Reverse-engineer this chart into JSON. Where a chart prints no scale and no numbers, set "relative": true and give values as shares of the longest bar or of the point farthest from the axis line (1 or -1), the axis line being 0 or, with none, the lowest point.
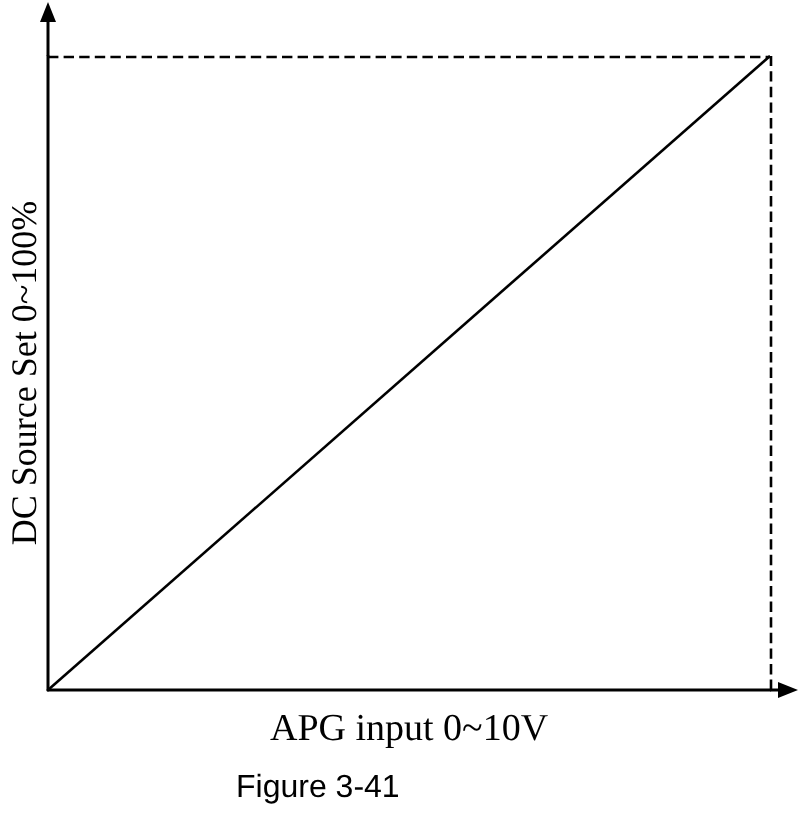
{
  "chart_data": {
    "type": "line",
    "xlabel": "APG input 0~10V",
    "ylabel": "DC Source Set 0~100%",
    "annotations": [
      "Figure 3-41"
    ],
    "categories": [
      null,
      null
    ],
    "relative": true,
    "series": [
      {
        "color": "#000000",
        "values": [
          0,
          1
        ]
      }
    ],
    "tick_labels": false,
    "grid": false,
    "marker": "none",
    "line_style": "solid",
    "ref_lines": [
      {
        "axis": "y",
        "value": 1,
        "color": "#000000",
        "line_style": "dashed"
      },
      {
        "axis": "x",
        "color": "#000000",
        "line_style": "dashed"
      }
    ]
  }
}
